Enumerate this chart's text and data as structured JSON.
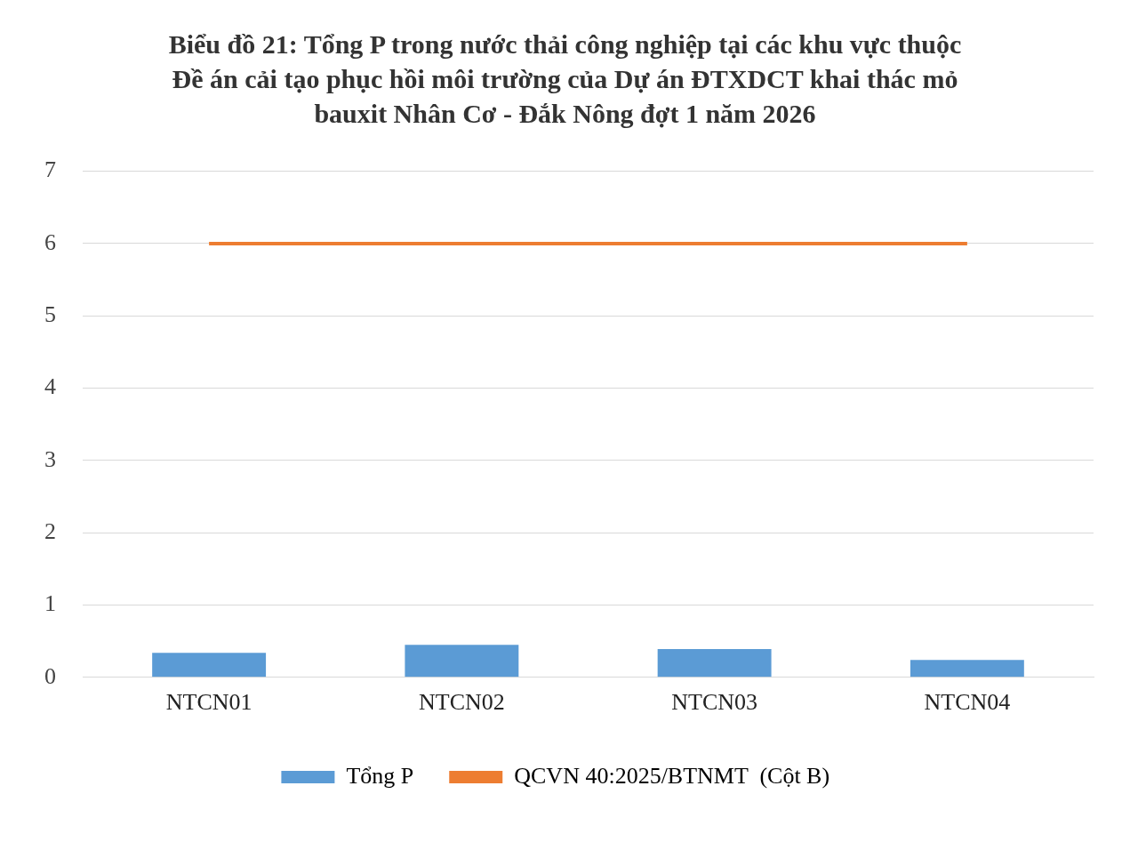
{
  "chart_data": {
    "type": "bar",
    "title": "Biểu đồ 21: Tổng P trong nước thải công nghiệp tại các khu vực thuộc Đề án cải tạo phục hồi môi trường của Dự án ĐTXDCT khai thác mỏ bauxit Nhân Cơ - Đắk Nông đợt 1 năm 2026",
    "categories": [
      "NTCN01",
      "NTCN02",
      "NTCN03",
      "NTCN04"
    ],
    "series": [
      {
        "name": "Tổng P",
        "color": "#5b9bd5",
        "values": [
          0.34,
          0.45,
          0.39,
          0.24
        ]
      },
      {
        "name": "QCVN 40:2025/BTNMT  (Cột B)",
        "type": "line",
        "color": "#ed7d31",
        "values": [
          6,
          6,
          6,
          6
        ]
      }
    ],
    "ylim": [
      0,
      7
    ],
    "yticks": [
      0,
      1,
      2,
      3,
      4,
      5,
      6,
      7
    ],
    "grid": "y",
    "legend": "bottom",
    "marker": "none"
  }
}
